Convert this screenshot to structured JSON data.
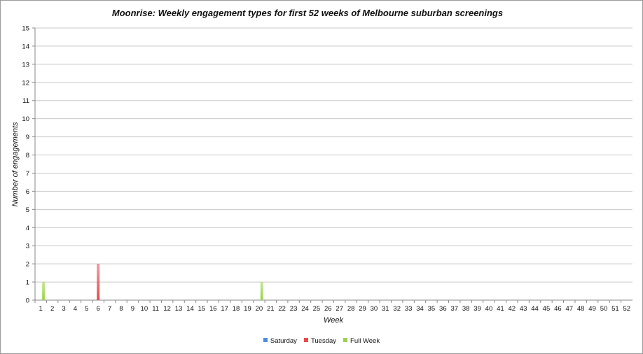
{
  "chart_data": {
    "type": "bar",
    "title": "Moonrise: Weekly engagement types for first 52 weeks of Melbourne suburban screenings",
    "xlabel": "Week",
    "ylabel": "Number of engagements",
    "ylim": [
      0,
      15
    ],
    "yticks": [
      "0",
      "1",
      "2",
      "3",
      "4",
      "5",
      "6",
      "7",
      "8",
      "9",
      "10",
      "11",
      "12",
      "13",
      "14",
      "15"
    ],
    "categories": [
      "1",
      "2",
      "3",
      "4",
      "5",
      "6",
      "7",
      "8",
      "9",
      "10",
      "11",
      "12",
      "13",
      "14",
      "15",
      "16",
      "17",
      "18",
      "19",
      "20",
      "21",
      "22",
      "23",
      "24",
      "25",
      "26",
      "27",
      "28",
      "29",
      "30",
      "31",
      "32",
      "33",
      "34",
      "35",
      "36",
      "37",
      "38",
      "39",
      "40",
      "41",
      "42",
      "43",
      "44",
      "45",
      "46",
      "47",
      "48",
      "49",
      "50",
      "51",
      "52"
    ],
    "series": [
      {
        "name": "Saturday",
        "color": "#4a90d9",
        "values": [
          0,
          0,
          0,
          0,
          0,
          0,
          0,
          0,
          0,
          0,
          0,
          0,
          0,
          0,
          0,
          0,
          0,
          0,
          0,
          0,
          0,
          0,
          0,
          0,
          0,
          0,
          0,
          0,
          0,
          0,
          0,
          0,
          0,
          0,
          0,
          0,
          0,
          0,
          0,
          0,
          0,
          0,
          0,
          0,
          0,
          0,
          0,
          0,
          0,
          0,
          0,
          0
        ]
      },
      {
        "name": "Tuesday",
        "color": "#e84a4a",
        "values": [
          0,
          0,
          0,
          0,
          0,
          2,
          0,
          0,
          0,
          0,
          0,
          0,
          0,
          0,
          0,
          0,
          0,
          0,
          0,
          0,
          0,
          0,
          0,
          0,
          0,
          0,
          0,
          0,
          0,
          0,
          0,
          0,
          0,
          0,
          0,
          0,
          0,
          0,
          0,
          0,
          0,
          0,
          0,
          0,
          0,
          0,
          0,
          0,
          0,
          0,
          0,
          0
        ]
      },
      {
        "name": "Full Week",
        "color": "#9bd34a",
        "values": [
          1,
          0,
          0,
          0,
          0,
          0,
          0,
          0,
          0,
          0,
          0,
          0,
          0,
          0,
          0,
          0,
          0,
          0,
          0,
          1,
          0,
          0,
          0,
          0,
          0,
          0,
          0,
          0,
          0,
          0,
          0,
          0,
          0,
          0,
          0,
          0,
          0,
          0,
          0,
          0,
          0,
          0,
          0,
          0,
          0,
          0,
          0,
          0,
          0,
          0,
          0,
          0
        ]
      }
    ],
    "grid": true,
    "legend_position": "bottom"
  }
}
